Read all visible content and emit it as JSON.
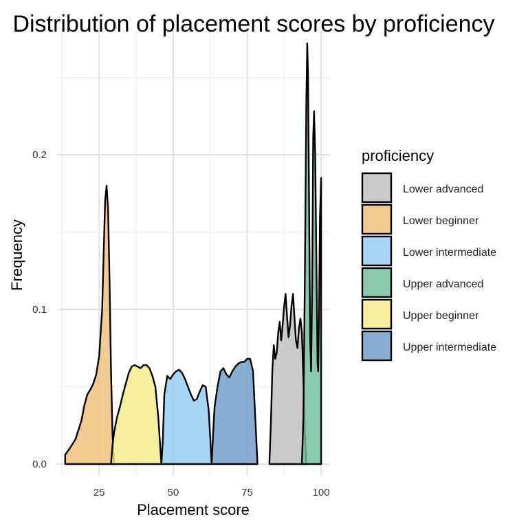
{
  "chart_data": {
    "type": "area",
    "title": "Distribution of placement scores by proficiency",
    "xlabel": "Placement score",
    "ylabel": "Frequency",
    "xlim": [
      11,
      103
    ],
    "ylim": [
      -0.008,
      0.28
    ],
    "x_ticks": [
      25,
      50,
      75,
      100
    ],
    "y_ticks": [
      0.0,
      0.1,
      0.2
    ],
    "y_tick_labels": [
      "0.0",
      "0.1",
      "0.2"
    ],
    "grid": true,
    "legend": {
      "title": "proficiency",
      "position": "right"
    },
    "series": [
      {
        "name": "Lower advanced",
        "color": "#BEBEBE",
        "points": [
          [
            82.5,
            0
          ],
          [
            83,
            0.025
          ],
          [
            83.5,
            0.06
          ],
          [
            84,
            0.077
          ],
          [
            84.5,
            0.068
          ],
          [
            85,
            0.072
          ],
          [
            85.5,
            0.085
          ],
          [
            86,
            0.092
          ],
          [
            86.5,
            0.08
          ],
          [
            87,
            0.09
          ],
          [
            87.5,
            0.102
          ],
          [
            88,
            0.11
          ],
          [
            88.5,
            0.095
          ],
          [
            89,
            0.082
          ],
          [
            89.5,
            0.09
          ],
          [
            90,
            0.102
          ],
          [
            90.5,
            0.11
          ],
          [
            91,
            0.095
          ],
          [
            91.5,
            0.08
          ],
          [
            92,
            0.075
          ],
          [
            92.5,
            0.088
          ],
          [
            93,
            0.094
          ],
          [
            93.5,
            0.085
          ],
          [
            94,
            0.055
          ],
          [
            94.5,
            0.02
          ],
          [
            95,
            0
          ]
        ]
      },
      {
        "name": "Lower beginner",
        "color": "#EFBF7A",
        "points": [
          [
            13.5,
            0.006
          ],
          [
            15,
            0.01
          ],
          [
            17,
            0.016
          ],
          [
            19,
            0.028
          ],
          [
            20,
            0.038
          ],
          [
            21,
            0.045
          ],
          [
            22,
            0.048
          ],
          [
            23,
            0.052
          ],
          [
            24,
            0.058
          ],
          [
            25,
            0.07
          ],
          [
            26,
            0.1
          ],
          [
            26.5,
            0.135
          ],
          [
            27,
            0.17
          ],
          [
            27.5,
            0.18
          ],
          [
            28,
            0.165
          ],
          [
            28.5,
            0.12
          ],
          [
            29,
            0.06
          ],
          [
            29.5,
            0.02
          ],
          [
            30,
            0
          ]
        ]
      },
      {
        "name": "Lower intermediate",
        "color": "#94CBF0",
        "points": [
          [
            46,
            0
          ],
          [
            46.5,
            0.015
          ],
          [
            47,
            0.045
          ],
          [
            48,
            0.057
          ],
          [
            49,
            0.055
          ],
          [
            50,
            0.058
          ],
          [
            51,
            0.06
          ],
          [
            52,
            0.061
          ],
          [
            53,
            0.059
          ],
          [
            54,
            0.055
          ],
          [
            55,
            0.05
          ],
          [
            56,
            0.045
          ],
          [
            57,
            0.041
          ],
          [
            58,
            0.042
          ],
          [
            59,
            0.047
          ],
          [
            60,
            0.051
          ],
          [
            61,
            0.05
          ],
          [
            62,
            0.035
          ],
          [
            62.5,
            0.018
          ],
          [
            63,
            0
          ]
        ]
      },
      {
        "name": "Upper advanced",
        "color": "#6FBE9D",
        "points": [
          [
            93.5,
            0
          ],
          [
            94,
            0.03
          ],
          [
            94.5,
            0.12
          ],
          [
            95,
            0.235
          ],
          [
            95.3,
            0.272
          ],
          [
            95.6,
            0.25
          ],
          [
            96,
            0.15
          ],
          [
            96.3,
            0.08
          ],
          [
            96.6,
            0.06
          ],
          [
            97,
            0.12
          ],
          [
            97.3,
            0.21
          ],
          [
            97.6,
            0.228
          ],
          [
            98,
            0.2
          ],
          [
            98.4,
            0.13
          ],
          [
            98.8,
            0.065
          ],
          [
            99,
            0.06
          ],
          [
            99.3,
            0.1
          ],
          [
            99.6,
            0.16
          ],
          [
            100,
            0.185
          ],
          [
            100,
            0
          ]
        ]
      },
      {
        "name": "Upper beginner",
        "color": "#F2EA88",
        "points": [
          [
            29,
            0
          ],
          [
            29.5,
            0.012
          ],
          [
            30,
            0.02
          ],
          [
            31,
            0.03
          ],
          [
            32,
            0.037
          ],
          [
            33,
            0.045
          ],
          [
            34,
            0.052
          ],
          [
            35,
            0.059
          ],
          [
            36,
            0.063
          ],
          [
            37,
            0.064
          ],
          [
            38,
            0.063
          ],
          [
            39,
            0.062
          ],
          [
            40,
            0.064
          ],
          [
            41,
            0.064
          ],
          [
            42,
            0.062
          ],
          [
            43,
            0.057
          ],
          [
            44,
            0.05
          ],
          [
            45,
            0.03
          ],
          [
            45.5,
            0.015
          ],
          [
            46,
            0
          ]
        ]
      },
      {
        "name": "Upper intermediate",
        "color": "#6E9BC8",
        "points": [
          [
            63,
            0
          ],
          [
            63.5,
            0.02
          ],
          [
            64,
            0.037
          ],
          [
            65,
            0.05
          ],
          [
            66,
            0.06
          ],
          [
            67,
            0.062
          ],
          [
            68,
            0.058
          ],
          [
            69,
            0.056
          ],
          [
            70,
            0.06
          ],
          [
            71,
            0.063
          ],
          [
            72,
            0.065
          ],
          [
            73,
            0.066
          ],
          [
            74,
            0.066
          ],
          [
            75,
            0.068
          ],
          [
            76,
            0.068
          ],
          [
            77,
            0.06
          ],
          [
            77.5,
            0.04
          ],
          [
            78,
            0.02
          ],
          [
            78.5,
            0
          ]
        ]
      }
    ]
  }
}
